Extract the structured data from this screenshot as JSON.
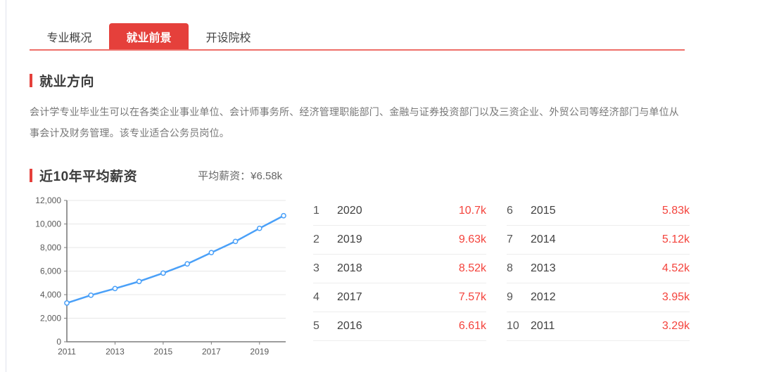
{
  "tabs": {
    "items": [
      {
        "label": "专业概况",
        "active": false
      },
      {
        "label": "就业前景",
        "active": true
      },
      {
        "label": "开设院校",
        "active": false
      }
    ]
  },
  "employment_direction": {
    "title": "就业方向",
    "description": "会计学专业毕业生可以在各类企业事业单位、会计师事务所、经济管理职能部门、金融与证券投资部门以及三资企业、外贸公司等经济部门与单位从事会计及财务管理。该专业适合公务员岗位。"
  },
  "salary_section": {
    "title": "近10年平均薪资",
    "average_label": "平均薪资：¥6.58k"
  },
  "chart_data": {
    "type": "line",
    "title": "近10年平均薪资",
    "x": [
      2011,
      2012,
      2013,
      2014,
      2015,
      2016,
      2017,
      2018,
      2019,
      2020
    ],
    "series": [
      {
        "name": "平均薪资",
        "values": [
          3290,
          3950,
          4520,
          5120,
          5830,
          6610,
          7570,
          8520,
          9630,
          10700
        ]
      }
    ],
    "ylim": [
      0,
      12000
    ],
    "yticks": [
      {
        "value": 0,
        "label": "0"
      },
      {
        "value": 2000,
        "label": "2,000"
      },
      {
        "value": 4000,
        "label": "4,000"
      },
      {
        "value": 6000,
        "label": "6,000"
      },
      {
        "value": 8000,
        "label": "8,000"
      },
      {
        "value": 10000,
        "label": "10,000"
      },
      {
        "value": 12000,
        "label": "12,000"
      }
    ],
    "xtick_label_years": [
      2011,
      2013,
      2015,
      2017,
      2019
    ],
    "xtick_mark_years": [
      2013,
      2015,
      2017,
      2019
    ],
    "grid": "horizontal",
    "legend": "none",
    "line_color": "#4aa0f8",
    "marker": "hollow-circle",
    "marker_fill": "#ffffff",
    "axis_color": "#7d7d7d",
    "grid_color": "#e7e7e7",
    "tick_label_color": "#595959"
  },
  "salary_table": {
    "rows": [
      {
        "rank": "1",
        "year": "2020",
        "value": "10.7k"
      },
      {
        "rank": "2",
        "year": "2019",
        "value": "9.63k"
      },
      {
        "rank": "3",
        "year": "2018",
        "value": "8.52k"
      },
      {
        "rank": "4",
        "year": "2017",
        "value": "7.57k"
      },
      {
        "rank": "5",
        "year": "2016",
        "value": "6.61k"
      },
      {
        "rank": "6",
        "year": "2015",
        "value": "5.83k"
      },
      {
        "rank": "7",
        "year": "2014",
        "value": "5.12k"
      },
      {
        "rank": "8",
        "year": "2013",
        "value": "4.52k"
      },
      {
        "rank": "9",
        "year": "2012",
        "value": "3.95k"
      },
      {
        "rank": "10",
        "year": "2011",
        "value": "3.29k"
      }
    ]
  },
  "colors": {
    "accent_red": "#e5403b",
    "underline_red": "#ee6f69",
    "value_red": "#f4433c",
    "line_blue": "#4aa0f8",
    "left_border": "#dfe2ec"
  }
}
